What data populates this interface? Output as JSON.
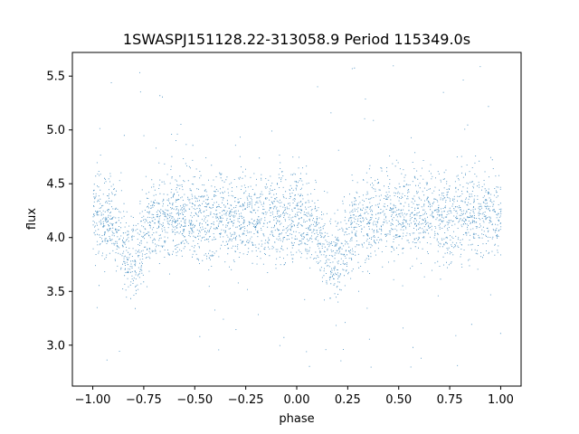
{
  "chart_data": {
    "type": "scatter",
    "title": "1SWASPJ151128.22-313058.9 Period 115349.0s",
    "xlabel": "phase",
    "ylabel": "flux",
    "xlim": [
      -1.1,
      1.1
    ],
    "ylim": [
      2.62,
      5.72
    ],
    "x_ticks": [
      -1.0,
      -0.75,
      -0.5,
      -0.25,
      0.0,
      0.25,
      0.5,
      0.75,
      1.0
    ],
    "x_tick_labels": [
      "−1.00",
      "−0.75",
      "−0.50",
      "−0.25",
      "0.00",
      "0.25",
      "0.50",
      "0.75",
      "1.00"
    ],
    "y_ticks": [
      3.0,
      3.5,
      4.0,
      4.5,
      5.0,
      5.5
    ],
    "y_tick_labels": [
      "3.0",
      "3.5",
      "4.0",
      "4.5",
      "5.0",
      "5.5"
    ],
    "grid": false,
    "legend": "none",
    "marker_color": "#1f77b4",
    "series": [
      {
        "phase_range": [
          -1.0,
          1.0
        ],
        "baseline_flux": 4.2,
        "scatter_std": 0.2,
        "outlier_range": [
          2.75,
          5.6
        ],
        "dips": [
          {
            "phase": -0.81,
            "depth": 0.42
          },
          {
            "phase": 0.19,
            "depth": 0.42
          },
          {
            "phase": 0.09,
            "depth": 0.12
          }
        ]
      }
    ]
  }
}
